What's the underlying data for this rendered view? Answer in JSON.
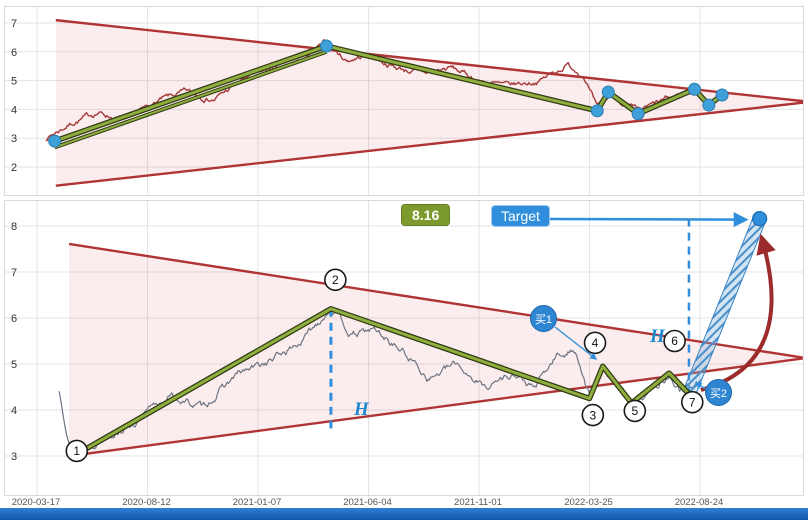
{
  "labels": {
    "measure_value": "8.16",
    "target": "Target",
    "h1": "H",
    "h2": "H",
    "buy1": "买1",
    "buy2": "买2"
  },
  "colors": {
    "wedge": "#b03434",
    "wedge_fill": "rgba(214,80,80,0.10)",
    "price_top": "#a63a3a",
    "price_bottom": "#6d7584",
    "zigzag": "#8fae3e",
    "zigzag_edge": "#2f3a14",
    "accent_blue": "#2f8fdc",
    "dot_blue": "#3f9fd8",
    "dot_edge": "#1a6ab0",
    "arrow_red": "#9c2b2b",
    "grid": "#e3e3e8",
    "marker_edge": "#1a1a1a"
  },
  "x_axis": {
    "ticks": [
      "2020-03-17",
      "2020-08-12",
      "2021-01-07",
      "2021-06-04",
      "2021-11-01",
      "2022-03-25",
      "2022-08-24"
    ]
  },
  "chart_data": [
    {
      "name": "top-overview",
      "type": "line",
      "title": "",
      "ylim": [
        2,
        7
      ],
      "y_ticks": [
        7,
        6,
        5,
        4,
        3,
        2
      ],
      "wedge": {
        "upper": [
          [
            0.17,
            7.1
          ],
          [
            6.95,
            4.28
          ]
        ],
        "lower": [
          [
            0.17,
            1.35
          ],
          [
            6.95,
            4.24
          ]
        ]
      },
      "zigzag": [
        [
          0.16,
          2.9
        ],
        [
          2.62,
          6.2
        ],
        [
          5.07,
          3.95
        ],
        [
          5.17,
          4.6
        ],
        [
          5.44,
          3.85
        ],
        [
          5.95,
          4.7
        ],
        [
          6.08,
          4.15
        ],
        [
          6.2,
          4.5
        ]
      ],
      "parallel_line": [
        [
          0.16,
          2.68
        ],
        [
          2.62,
          6.0
        ]
      ],
      "pivot_dots": [
        0,
        1,
        2,
        3,
        4,
        5,
        6,
        7
      ],
      "price_anchors": [
        [
          0.08,
          3.0
        ],
        [
          0.3,
          3.5
        ],
        [
          0.55,
          3.9
        ],
        [
          0.8,
          3.6
        ],
        [
          1.1,
          4.3
        ],
        [
          1.35,
          4.6
        ],
        [
          1.6,
          4.35
        ],
        [
          1.9,
          5.1
        ],
        [
          2.2,
          5.5
        ],
        [
          2.45,
          5.9
        ],
        [
          2.62,
          6.3
        ],
        [
          2.8,
          5.7
        ],
        [
          3.0,
          5.9
        ],
        [
          3.25,
          5.45
        ],
        [
          3.5,
          5.25
        ],
        [
          3.75,
          5.45
        ],
        [
          4.0,
          5.0
        ],
        [
          4.25,
          4.8
        ],
        [
          4.55,
          5.0
        ],
        [
          4.8,
          5.55
        ],
        [
          4.95,
          5.2
        ],
        [
          5.07,
          4.0
        ],
        [
          5.2,
          4.5
        ],
        [
          5.44,
          3.9
        ],
        [
          5.7,
          4.35
        ],
        [
          5.95,
          4.65
        ],
        [
          6.08,
          4.2
        ],
        [
          6.22,
          4.55
        ]
      ]
    },
    {
      "name": "bottom-analysis",
      "type": "line",
      "title": "",
      "ylim": [
        3,
        8
      ],
      "y_ticks": [
        8,
        7,
        6,
        5,
        4,
        3
      ],
      "wedge": {
        "upper": [
          [
            0.29,
            7.61
          ],
          [
            6.93,
            5.14
          ]
        ],
        "lower": [
          [
            0.29,
            3.0
          ],
          [
            6.93,
            5.12
          ]
        ]
      },
      "zigzag": [
        [
          0.33,
          3.0
        ],
        [
          2.66,
          6.2
        ],
        [
          5.0,
          4.25
        ],
        [
          5.12,
          4.95
        ],
        [
          5.38,
          4.15
        ],
        [
          5.72,
          4.8
        ],
        [
          5.9,
          4.35
        ]
      ],
      "markers": [
        {
          "label": "1",
          "idx": 0.36,
          "v": 3.11
        },
        {
          "label": "2",
          "idx": 2.7,
          "v": 6.83
        },
        {
          "label": "3",
          "idx": 5.03,
          "v": 3.89
        },
        {
          "label": "4",
          "idx": 5.05,
          "v": 5.46
        },
        {
          "label": "5",
          "idx": 5.41,
          "v": 3.98
        },
        {
          "label": "6",
          "idx": 5.77,
          "v": 5.5
        },
        {
          "label": "7",
          "idx": 5.93,
          "v": 4.17
        }
      ],
      "measure_line_peak": {
        "idx": 2.66,
        "v_top": 6.2,
        "v_bottom": 3.6
      },
      "measure_line_target": {
        "idx": 5.9,
        "v_top": 8.16,
        "v_bottom": 4.35
      },
      "target_point": {
        "idx": 6.54,
        "v": 8.16
      },
      "projection_band": {
        "from": {
          "idx": 5.9,
          "v": 4.35
        },
        "to": {
          "idx": 6.54,
          "v": 8.16
        }
      },
      "price_anchors": [
        [
          0.2,
          4.4
        ],
        [
          0.33,
          2.95
        ],
        [
          0.6,
          3.45
        ],
        [
          0.9,
          3.75
        ],
        [
          1.2,
          4.3
        ],
        [
          1.5,
          4.05
        ],
        [
          1.8,
          4.75
        ],
        [
          2.1,
          5.05
        ],
        [
          2.4,
          5.5
        ],
        [
          2.66,
          6.25
        ],
        [
          2.85,
          5.6
        ],
        [
          3.05,
          5.75
        ],
        [
          3.3,
          5.3
        ],
        [
          3.55,
          4.7
        ],
        [
          3.8,
          5.0
        ],
        [
          4.05,
          4.5
        ],
        [
          4.3,
          4.8
        ],
        [
          4.5,
          4.45
        ],
        [
          4.7,
          5.15
        ],
        [
          4.88,
          5.3
        ],
        [
          5.0,
          4.3
        ],
        [
          5.12,
          4.9
        ],
        [
          5.38,
          4.2
        ],
        [
          5.6,
          4.55
        ],
        [
          5.72,
          4.75
        ],
        [
          5.83,
          4.4
        ],
        [
          5.97,
          4.6
        ]
      ]
    }
  ]
}
